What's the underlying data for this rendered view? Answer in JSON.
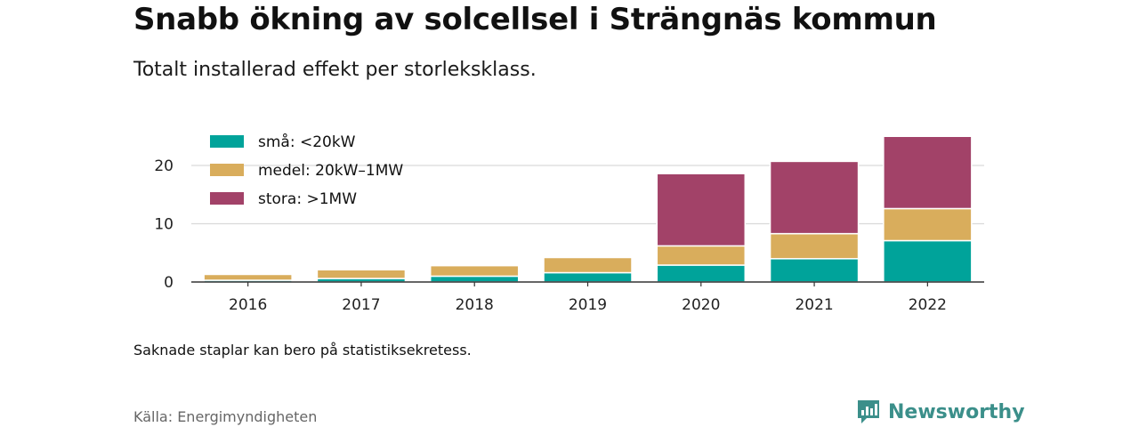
{
  "header": {
    "title": "Snabb ökning av solcellsel i Strängnäs kommun",
    "subtitle": "Totalt installerad effekt per storleksklass."
  },
  "footer": {
    "note": "Saknade staplar kan bero på statistiksekretess.",
    "source": "Källa: Energimyndigheten",
    "brand": "Newsworthy"
  },
  "chart_data": {
    "type": "bar",
    "stacked": true,
    "categories": [
      "2016",
      "2017",
      "2018",
      "2019",
      "2020",
      "2021",
      "2022"
    ],
    "series": [
      {
        "name": "små: <20kW",
        "color": "#00a39a",
        "values": [
          0.3,
          0.6,
          1.0,
          1.6,
          2.9,
          4.0,
          7.1
        ]
      },
      {
        "name": "medel: 20kW–1MW",
        "color": "#d9ad5c",
        "values": [
          1.0,
          1.5,
          1.8,
          2.6,
          3.3,
          4.3,
          5.5
        ]
      },
      {
        "name": "stora: >1MW",
        "color": "#a24268",
        "values": [
          0,
          0,
          0,
          0,
          12.4,
          12.4,
          12.4
        ]
      }
    ],
    "yticks": [
      0,
      10,
      20
    ],
    "ylim": [
      0,
      25
    ],
    "grid": true,
    "legend_position": "top-left"
  }
}
